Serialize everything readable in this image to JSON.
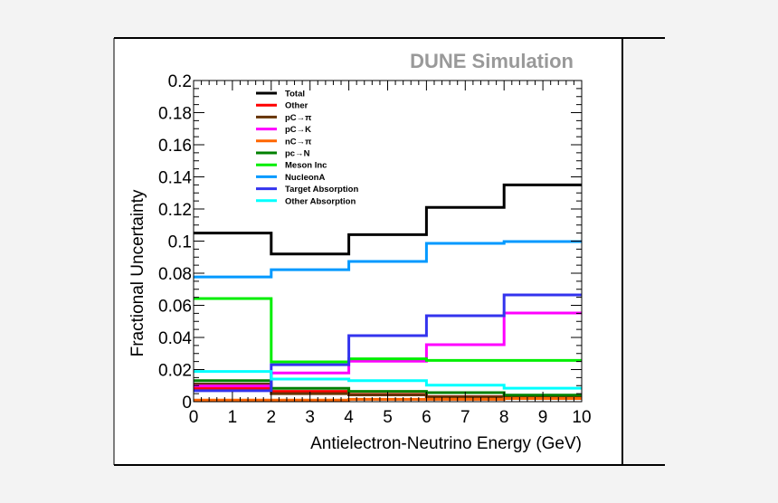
{
  "chart_data": {
    "type": "line",
    "title": "DUNE Simulation",
    "xlabel": "Antielectron-Neutrino Energy (GeV)",
    "ylabel": "Fractional Uncertainty",
    "xlim": [
      0,
      10
    ],
    "ylim": [
      0,
      0.2
    ],
    "x_ticks": [
      "0",
      "1",
      "2",
      "3",
      "4",
      "5",
      "6",
      "7",
      "8",
      "9",
      "10"
    ],
    "y_ticks": [
      "0",
      "0.02",
      "0.04",
      "0.06",
      "0.08",
      "0.1",
      "0.12",
      "0.14",
      "0.16",
      "0.18",
      "0.2"
    ],
    "bin_edges": [
      0,
      2,
      4,
      6,
      8,
      10
    ],
    "grid": false,
    "legend_placement": "top-left",
    "series": [
      {
        "name": "Total",
        "color": "#000000",
        "values": [
          0.105,
          0.092,
          0.104,
          0.121,
          0.135
        ]
      },
      {
        "name": "Other",
        "color": "#ff0000",
        "values": [
          0.0083,
          0.0064,
          0.0045,
          0.0032,
          0.003
        ]
      },
      {
        "name": "pC→π",
        "color": "#663300",
        "values": [
          0.011,
          0.005,
          0.0042,
          0.003,
          0.0025
        ]
      },
      {
        "name": "pC→K",
        "color": "#ff00ff",
        "values": [
          0.0098,
          0.0179,
          0.0252,
          0.0355,
          0.0552
        ]
      },
      {
        "name": "nC→π",
        "color": "#ff6600",
        "values": [
          0.001,
          0.001,
          0.0015,
          0.0015,
          0.002
        ]
      },
      {
        "name": "pc→N",
        "color": "#008000",
        "values": [
          0.0131,
          0.0083,
          0.0064,
          0.0056,
          0.0041
        ]
      },
      {
        "name": "Meson Inc",
        "color": "#00ee00",
        "values": [
          0.0642,
          0.0248,
          0.0267,
          0.0257,
          0.0257
        ]
      },
      {
        "name": "NucleonA",
        "color": "#0099ff",
        "values": [
          0.0777,
          0.0822,
          0.0873,
          0.0986,
          0.0997
        ]
      },
      {
        "name": "Target Absorption",
        "color": "#3333ee",
        "values": [
          0.0068,
          0.023,
          0.0411,
          0.0535,
          0.0665
        ]
      },
      {
        "name": "Other Absorption",
        "color": "#00ffff",
        "values": [
          0.0188,
          0.0141,
          0.0131,
          0.0103,
          0.0084
        ]
      }
    ]
  }
}
